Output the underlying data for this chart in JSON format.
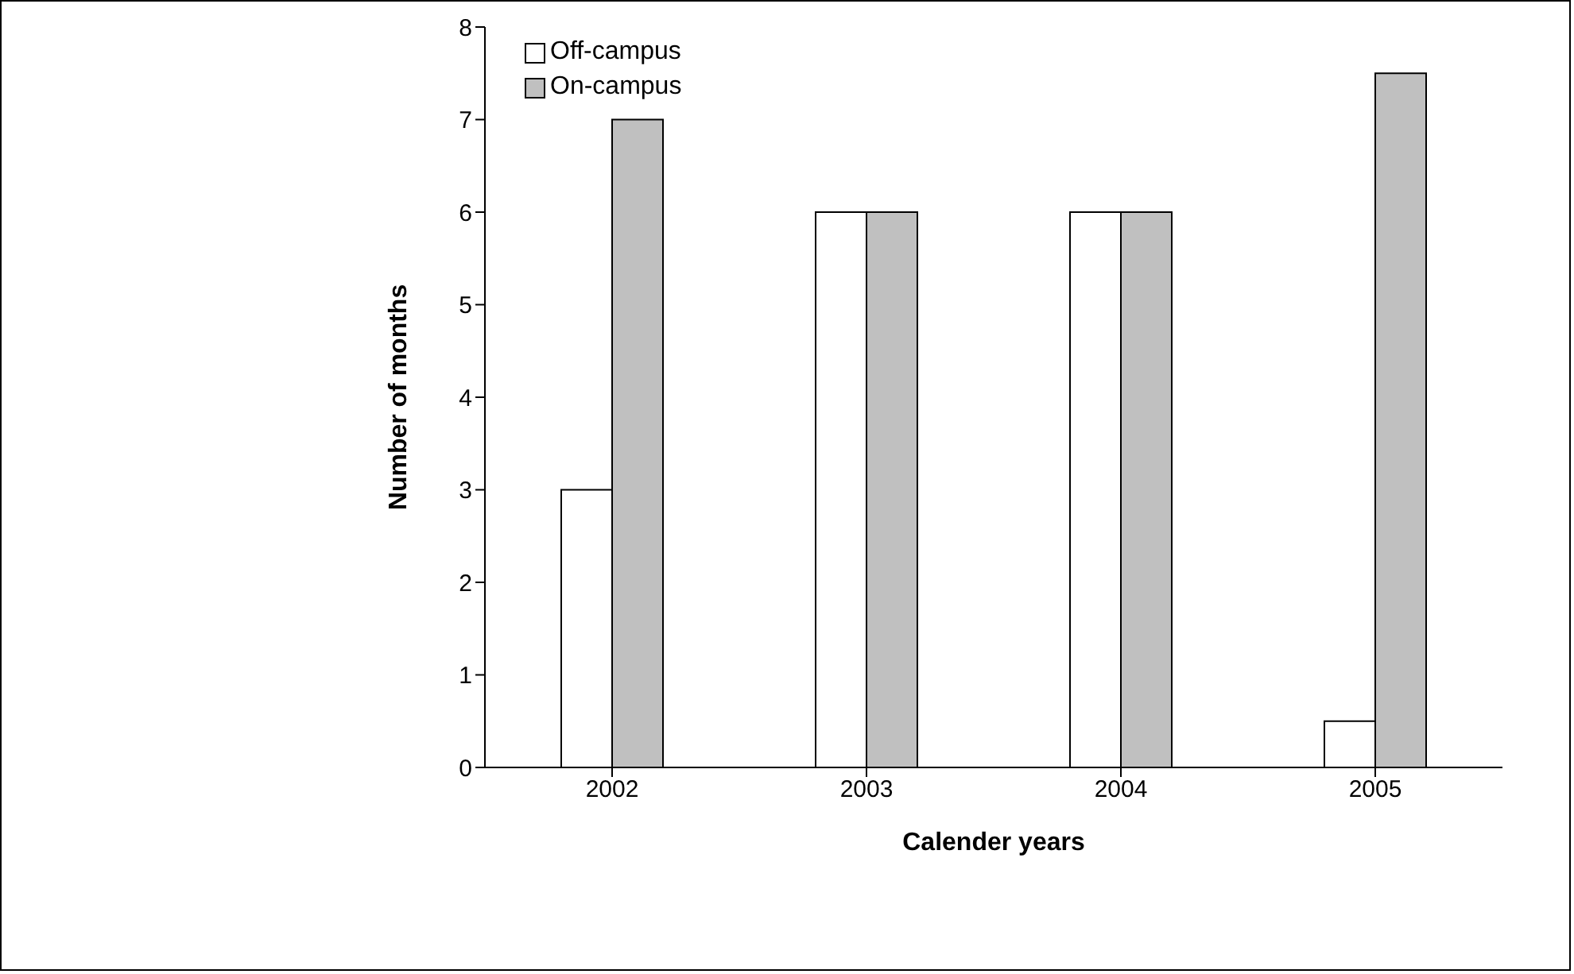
{
  "chart_data": {
    "type": "bar",
    "xlabel": "Calender years",
    "ylabel": "Number of months",
    "categories": [
      "2002",
      "2003",
      "2004",
      "2005"
    ],
    "series": [
      {
        "name": "Off-campus",
        "color": "#ffffff",
        "values": [
          3,
          6,
          6,
          0.5
        ]
      },
      {
        "name": "On-campus",
        "color": "#c0c0c0",
        "values": [
          7,
          6,
          6,
          7.5
        ]
      }
    ],
    "ylim": [
      0,
      8
    ],
    "yticks": [
      0,
      1,
      2,
      3,
      4,
      5,
      6,
      7,
      8
    ],
    "grid": false,
    "legend": "top"
  }
}
